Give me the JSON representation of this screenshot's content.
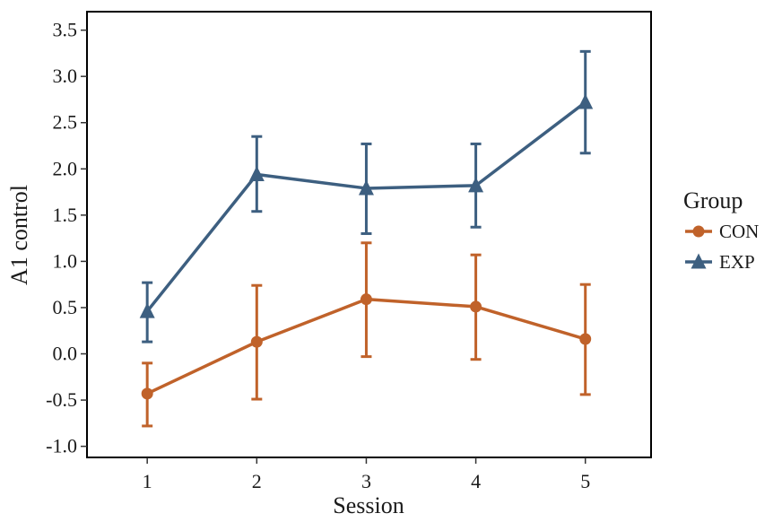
{
  "chart_data": {
    "type": "line",
    "xlabel": "Session",
    "ylabel": "A1 control",
    "x": [
      1,
      2,
      3,
      4,
      5
    ],
    "xlim": [
      0.45,
      5.6
    ],
    "ylim": [
      -1.12,
      3.7
    ],
    "yticks": [
      -1.0,
      -0.5,
      0.0,
      0.5,
      1.0,
      1.5,
      2.0,
      2.5,
      3.0,
      3.5
    ],
    "ytick_labels": [
      "-1.0",
      "-0.5",
      "0.0",
      "0.5",
      "1.0",
      "1.5",
      "2.0",
      "2.5",
      "3.0",
      "3.5"
    ],
    "xtick_labels": [
      "1",
      "2",
      "3",
      "4",
      "5"
    ],
    "grid": false,
    "legend": {
      "title": "Group",
      "placement": "right"
    },
    "series": [
      {
        "name": "CON",
        "color": "#c0622a",
        "marker": "circle",
        "values": [
          -0.43,
          0.13,
          0.59,
          0.51,
          0.16
        ],
        "error_low": [
          -0.78,
          -0.49,
          -0.03,
          -0.06,
          -0.44
        ],
        "error_high": [
          -0.1,
          0.74,
          1.2,
          1.07,
          0.75
        ]
      },
      {
        "name": "EXP",
        "color": "#3d5f80",
        "marker": "triangle",
        "values": [
          0.46,
          1.94,
          1.79,
          1.82,
          2.72
        ],
        "error_low": [
          0.13,
          1.54,
          1.3,
          1.37,
          2.17
        ],
        "error_high": [
          0.77,
          2.35,
          2.27,
          2.27,
          3.27
        ]
      }
    ]
  }
}
